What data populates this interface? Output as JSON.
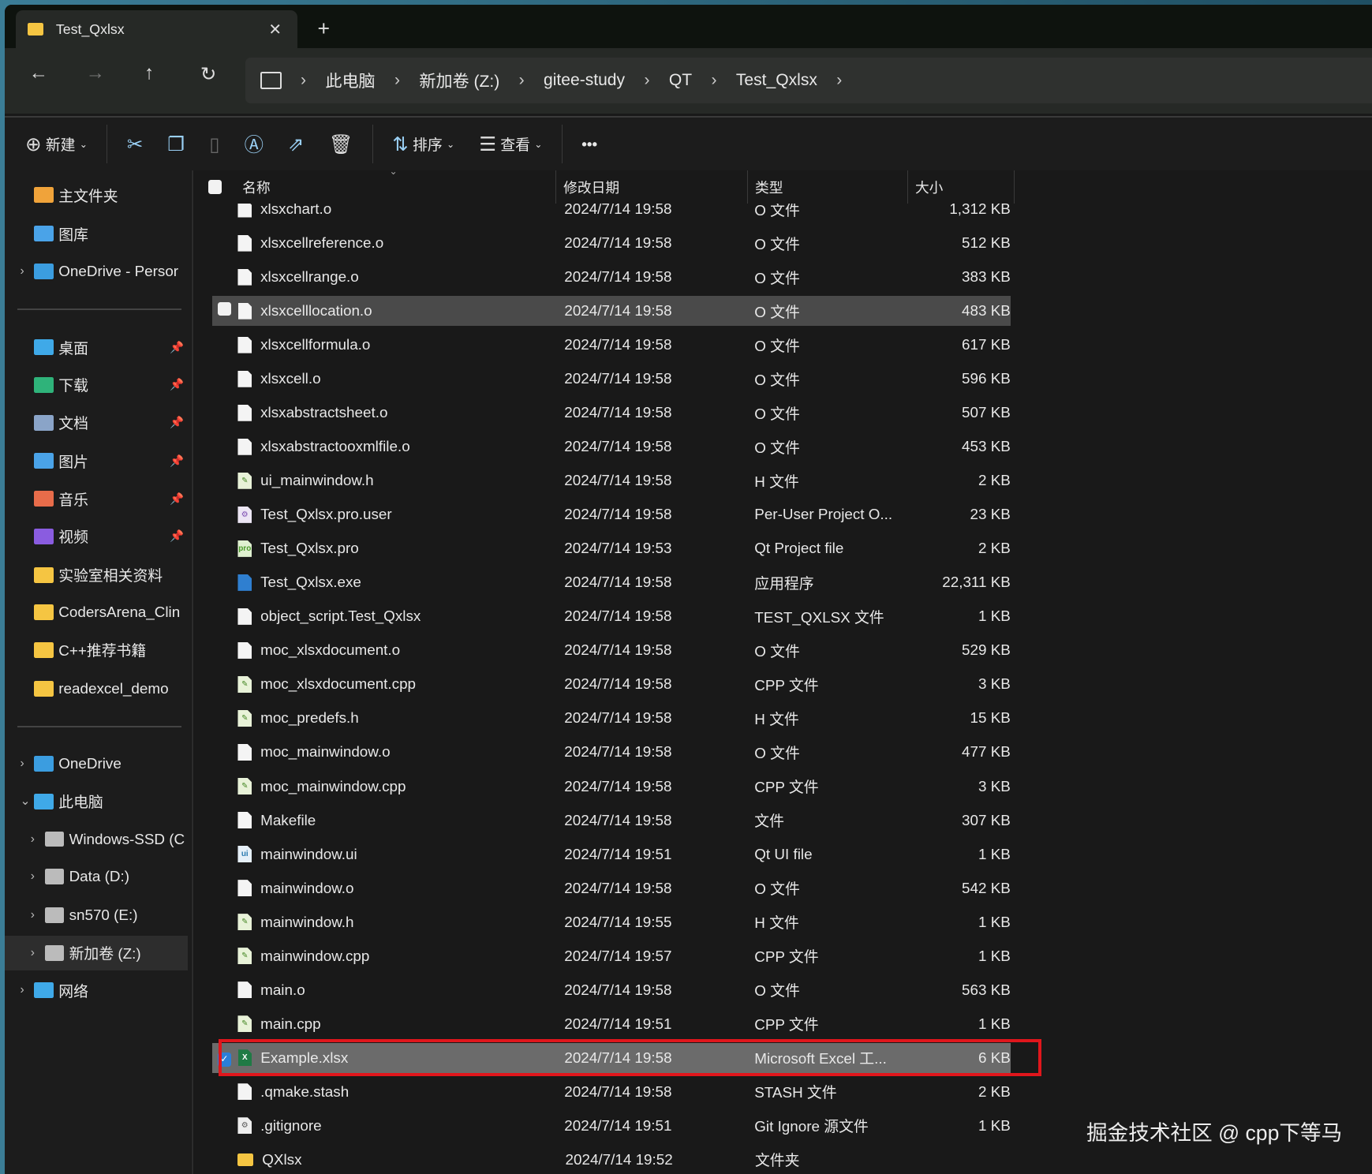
{
  "tab": {
    "title": "Test_Qxlsx",
    "close": "✕",
    "new": "+"
  },
  "nav": {
    "back": "←",
    "forward": "→",
    "up": "↑",
    "refresh": "↻",
    "breadcrumb": [
      "此电脑",
      "新加卷 (Z:)",
      "gitee-study",
      "QT",
      "Test_Qxlsx"
    ]
  },
  "toolbar": {
    "new": "新建",
    "sort": "排序",
    "view": "查看",
    "more": "•••"
  },
  "sidebar": [
    {
      "label": "主文件夹",
      "icon": "home",
      "color": "#f0a33a"
    },
    {
      "label": "图库",
      "icon": "gallery",
      "color": "#4aa3e8"
    },
    {
      "label": "OneDrive - Persor",
      "icon": "cloud",
      "color": "#3b9de0",
      "chevron": "›"
    },
    {
      "label": "桌面",
      "icon": "desktop",
      "color": "#3fa9e8",
      "pinned": true
    },
    {
      "label": "下载",
      "icon": "download",
      "color": "#2fb37a",
      "pinned": true
    },
    {
      "label": "文档",
      "icon": "document",
      "color": "#8aa4c8",
      "pinned": true
    },
    {
      "label": "图片",
      "icon": "pictures",
      "color": "#4aa3e8",
      "pinned": true
    },
    {
      "label": "音乐",
      "icon": "music",
      "color": "#e86c4a",
      "pinned": true
    },
    {
      "label": "视频",
      "icon": "video",
      "color": "#8a5ce0",
      "pinned": true
    },
    {
      "label": "实验室相关资料",
      "icon": "folder",
      "color": "#f5c542"
    },
    {
      "label": "CodersArena_Clin",
      "icon": "folder",
      "color": "#f5c542"
    },
    {
      "label": "C++推荐书籍",
      "icon": "folder",
      "color": "#f5c542"
    },
    {
      "label": "readexcel_demo",
      "icon": "folder",
      "color": "#f5c542"
    },
    {
      "label": "OneDrive",
      "icon": "cloud",
      "color": "#3b9de0",
      "chevron": "›"
    },
    {
      "label": "此电脑",
      "icon": "computer",
      "color": "#3fa9e8",
      "chevron": "⌄"
    },
    {
      "label": "Windows-SSD (C",
      "icon": "drive",
      "color": "#bbbbbb",
      "chevron": "›"
    },
    {
      "label": "Data (D:)",
      "icon": "drive",
      "color": "#bbbbbb",
      "chevron": "›"
    },
    {
      "label": "sn570 (E:)",
      "icon": "drive",
      "color": "#bbbbbb",
      "chevron": "›"
    },
    {
      "label": "新加卷 (Z:)",
      "icon": "drive",
      "color": "#bbbbbb",
      "chevron": "›",
      "selected": true
    },
    {
      "label": "网络",
      "icon": "network",
      "color": "#3fa9e8",
      "chevron": "›"
    }
  ],
  "columns": {
    "name": "名称",
    "date": "修改日期",
    "type": "类型",
    "size": "大小"
  },
  "files": [
    {
      "name": "xlsxchart.o",
      "date": "2024/7/14 19:58",
      "type": "O 文件",
      "size": "1,312 KB",
      "icon": "file"
    },
    {
      "name": "xlsxcellreference.o",
      "date": "2024/7/14 19:58",
      "type": "O 文件",
      "size": "512 KB",
      "icon": "file"
    },
    {
      "name": "xlsxcellrange.o",
      "date": "2024/7/14 19:58",
      "type": "O 文件",
      "size": "383 KB",
      "icon": "file"
    },
    {
      "name": "xlsxcelllocation.o",
      "date": "2024/7/14 19:58",
      "type": "O 文件",
      "size": "483 KB",
      "icon": "file",
      "state": "hover"
    },
    {
      "name": "xlsxcellformula.o",
      "date": "2024/7/14 19:58",
      "type": "O 文件",
      "size": "617 KB",
      "icon": "file"
    },
    {
      "name": "xlsxcell.o",
      "date": "2024/7/14 19:58",
      "type": "O 文件",
      "size": "596 KB",
      "icon": "file"
    },
    {
      "name": "xlsxabstractsheet.o",
      "date": "2024/7/14 19:58",
      "type": "O 文件",
      "size": "507 KB",
      "icon": "file"
    },
    {
      "name": "xlsxabstractooxmlfile.o",
      "date": "2024/7/14 19:58",
      "type": "O 文件",
      "size": "453 KB",
      "icon": "file"
    },
    {
      "name": "ui_mainwindow.h",
      "date": "2024/7/14 19:58",
      "type": "H 文件",
      "size": "2 KB",
      "icon": "code"
    },
    {
      "name": "Test_Qxlsx.pro.user",
      "date": "2024/7/14 19:58",
      "type": "Per-User Project O...",
      "size": "23 KB",
      "icon": "pro-user"
    },
    {
      "name": "Test_Qxlsx.pro",
      "date": "2024/7/14 19:53",
      "type": "Qt Project file",
      "size": "2 KB",
      "icon": "pro"
    },
    {
      "name": "Test_Qxlsx.exe",
      "date": "2024/7/14 19:58",
      "type": "应用程序",
      "size": "22,311 KB",
      "icon": "exe"
    },
    {
      "name": "object_script.Test_Qxlsx",
      "date": "2024/7/14 19:58",
      "type": "TEST_QXLSX 文件",
      "size": "1 KB",
      "icon": "file"
    },
    {
      "name": "moc_xlsxdocument.o",
      "date": "2024/7/14 19:58",
      "type": "O 文件",
      "size": "529 KB",
      "icon": "file"
    },
    {
      "name": "moc_xlsxdocument.cpp",
      "date": "2024/7/14 19:58",
      "type": "CPP 文件",
      "size": "3 KB",
      "icon": "code"
    },
    {
      "name": "moc_predefs.h",
      "date": "2024/7/14 19:58",
      "type": "H 文件",
      "size": "15 KB",
      "icon": "code"
    },
    {
      "name": "moc_mainwindow.o",
      "date": "2024/7/14 19:58",
      "type": "O 文件",
      "size": "477 KB",
      "icon": "file"
    },
    {
      "name": "moc_mainwindow.cpp",
      "date": "2024/7/14 19:58",
      "type": "CPP 文件",
      "size": "3 KB",
      "icon": "code"
    },
    {
      "name": "Makefile",
      "date": "2024/7/14 19:58",
      "type": "文件",
      "size": "307 KB",
      "icon": "file"
    },
    {
      "name": "mainwindow.ui",
      "date": "2024/7/14 19:51",
      "type": "Qt UI file",
      "size": "1 KB",
      "icon": "ui"
    },
    {
      "name": "mainwindow.o",
      "date": "2024/7/14 19:58",
      "type": "O 文件",
      "size": "542 KB",
      "icon": "file"
    },
    {
      "name": "mainwindow.h",
      "date": "2024/7/14 19:55",
      "type": "H 文件",
      "size": "1 KB",
      "icon": "code"
    },
    {
      "name": "mainwindow.cpp",
      "date": "2024/7/14 19:57",
      "type": "CPP 文件",
      "size": "1 KB",
      "icon": "code"
    },
    {
      "name": "main.o",
      "date": "2024/7/14 19:58",
      "type": "O 文件",
      "size": "563 KB",
      "icon": "file"
    },
    {
      "name": "main.cpp",
      "date": "2024/7/14 19:51",
      "type": "CPP 文件",
      "size": "1 KB",
      "icon": "code"
    },
    {
      "name": "Example.xlsx",
      "date": "2024/7/14 19:58",
      "type": "Microsoft Excel 工...",
      "size": "6 KB",
      "icon": "excel",
      "state": "selected"
    },
    {
      "name": ".qmake.stash",
      "date": "2024/7/14 19:58",
      "type": "STASH 文件",
      "size": "2 KB",
      "icon": "file"
    },
    {
      "name": ".gitignore",
      "date": "2024/7/14 19:51",
      "type": "Git Ignore 源文件",
      "size": "1 KB",
      "icon": "gitignore"
    },
    {
      "name": "QXlsx",
      "date": "2024/7/14 19:52",
      "type": "文件夹",
      "size": "",
      "icon": "folder"
    }
  ],
  "highlight_color": "#e0161c",
  "watermark": "掘金技术社区 @ cpp下等马"
}
